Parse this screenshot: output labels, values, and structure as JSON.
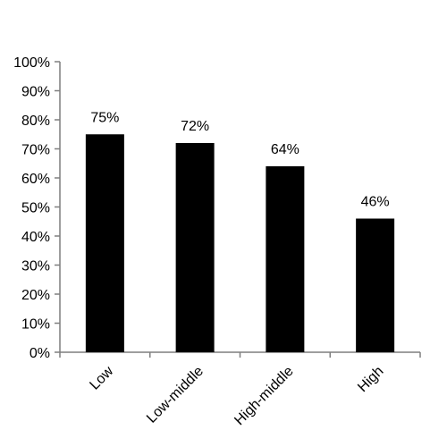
{
  "chart_data": {
    "type": "bar",
    "categories": [
      "Low",
      "Low-middle",
      "High-middle",
      "High"
    ],
    "values": [
      75,
      72,
      64,
      46
    ],
    "data_labels": [
      "75%",
      "72%",
      "64%",
      "46%"
    ],
    "y_ticks": [
      "0%",
      "10%",
      "20%",
      "30%",
      "40%",
      "50%",
      "60%",
      "70%",
      "80%",
      "90%",
      "100%"
    ],
    "ylim": [
      0,
      100
    ],
    "bar_color": "#000000",
    "axis_color": "#7f7f7f",
    "grid": false,
    "legend": "none"
  }
}
